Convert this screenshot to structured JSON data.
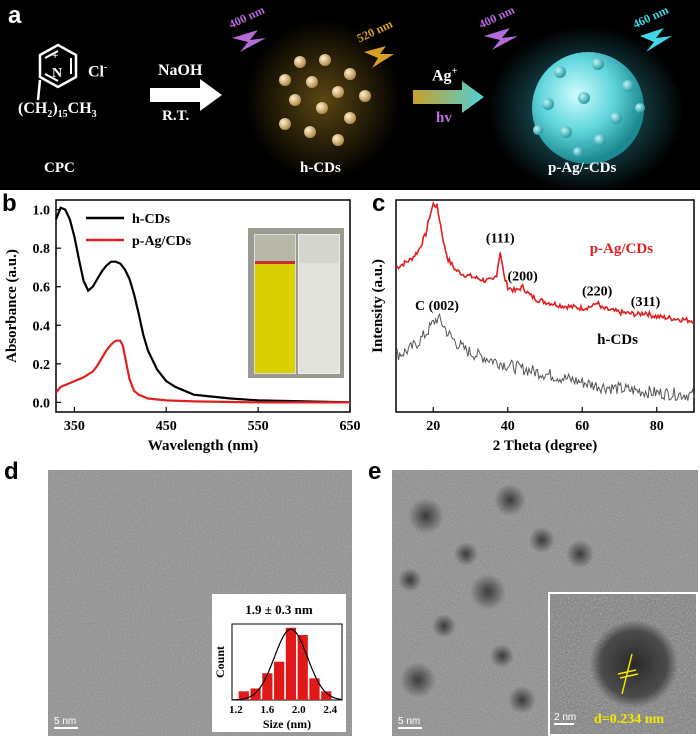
{
  "panel_a": {
    "letter": "a",
    "anion": "Cl",
    "anion_charge": "-",
    "cation_charge": "+",
    "nitrogen": "N",
    "chain": "(CH",
    "chain_sub1": "2",
    "chain_mid": ")",
    "chain_sub2": "15",
    "chain_end": "CH",
    "chain_sub3": "3",
    "reagent1": "NaOH",
    "condition1": "R.T.",
    "reagent2": "Ag",
    "reagent2_charge": "+",
    "condition2": "hv",
    "label_cpc": "CPC",
    "label_hcds": "h-CDs",
    "label_pag": "p-Ag/-CDs",
    "exc1": "400 nm",
    "em1": "520 nm",
    "exc2": "400 nm",
    "em2": "460 nm"
  },
  "panel_b": {
    "letter": "b"
  },
  "panel_c": {
    "letter": "c"
  },
  "panel_d": {
    "letter": "d",
    "scale": "5 nm",
    "inset_title": "1.9 ± 0.3 nm"
  },
  "panel_e": {
    "letter": "e",
    "scale": "5 nm",
    "inset_scale": "2 nm",
    "d_spacing": "d=0.234 nm"
  },
  "chart_data": [
    {
      "type": "line",
      "panel": "b",
      "xlabel": "Wavelength (nm)",
      "ylabel": "Absorbance (a.u.)",
      "xlim": [
        330,
        650
      ],
      "ylim": [
        -0.05,
        1.05
      ],
      "xticks": [
        350,
        450,
        550,
        650
      ],
      "yticks": [
        0.0,
        0.2,
        0.4,
        0.6,
        0.8,
        1.0
      ],
      "ytick_labels": [
        "0.0",
        "0.2",
        "0.4",
        "0.6",
        "0.8",
        "1.0"
      ],
      "legend": "top-left",
      "series": [
        {
          "name": "h-CDs",
          "color": "#000000",
          "x": [
            330,
            335,
            340,
            345,
            350,
            355,
            360,
            365,
            370,
            375,
            380,
            385,
            390,
            395,
            400,
            405,
            410,
            415,
            420,
            425,
            430,
            440,
            450,
            460,
            470,
            480,
            500,
            520,
            550,
            600,
            650
          ],
          "y": [
            0.95,
            1.01,
            1.0,
            0.95,
            0.86,
            0.74,
            0.63,
            0.58,
            0.6,
            0.64,
            0.68,
            0.71,
            0.73,
            0.73,
            0.72,
            0.69,
            0.64,
            0.56,
            0.46,
            0.35,
            0.27,
            0.17,
            0.11,
            0.08,
            0.06,
            0.04,
            0.03,
            0.02,
            0.01,
            0.005,
            0.0
          ]
        },
        {
          "name": "p-Ag/CDs",
          "color": "#e02020",
          "x": [
            330,
            335,
            340,
            350,
            360,
            370,
            375,
            380,
            385,
            390,
            395,
            400,
            403,
            405,
            410,
            415,
            420,
            430,
            450,
            480,
            550,
            650
          ],
          "y": [
            0.05,
            0.08,
            0.09,
            0.11,
            0.13,
            0.16,
            0.19,
            0.23,
            0.27,
            0.3,
            0.32,
            0.32,
            0.29,
            0.24,
            0.12,
            0.06,
            0.04,
            0.02,
            0.01,
            0.005,
            0.0,
            0.0
          ]
        }
      ]
    },
    {
      "type": "line",
      "panel": "c",
      "xlabel": "2 Theta (degree)",
      "ylabel": "Intensity (a.u.)",
      "xlim": [
        10,
        90
      ],
      "xticks": [
        20,
        40,
        60,
        80
      ],
      "grid": false,
      "series": [
        {
          "name": "p-Ag/CDs",
          "color": "#e02020",
          "x": [
            10,
            12,
            14,
            16,
            18,
            19,
            20,
            21,
            22,
            23,
            24,
            26,
            28,
            30,
            32,
            34,
            36,
            37,
            38,
            39,
            40,
            42,
            43,
            44,
            45,
            46,
            48,
            50,
            55,
            60,
            63,
            64,
            65,
            70,
            75,
            77,
            78,
            80,
            85,
            90
          ],
          "y": [
            0.68,
            0.7,
            0.72,
            0.76,
            0.84,
            0.92,
            0.98,
            0.97,
            0.88,
            0.78,
            0.72,
            0.67,
            0.65,
            0.64,
            0.63,
            0.62,
            0.62,
            0.65,
            0.76,
            0.64,
            0.59,
            0.57,
            0.58,
            0.59,
            0.57,
            0.55,
            0.53,
            0.52,
            0.5,
            0.49,
            0.5,
            0.52,
            0.49,
            0.47,
            0.46,
            0.47,
            0.46,
            0.45,
            0.44,
            0.43
          ]
        },
        {
          "name": "h-CDs",
          "color": "#555555",
          "x": [
            10,
            12,
            14,
            16,
            18,
            20,
            21,
            22,
            23,
            24,
            26,
            28,
            30,
            35,
            40,
            45,
            50,
            55,
            60,
            65,
            70,
            75,
            80,
            85,
            90
          ],
          "y": [
            0.27,
            0.28,
            0.3,
            0.33,
            0.37,
            0.42,
            0.44,
            0.43,
            0.4,
            0.37,
            0.33,
            0.3,
            0.28,
            0.25,
            0.22,
            0.2,
            0.18,
            0.16,
            0.14,
            0.12,
            0.11,
            0.1,
            0.09,
            0.085,
            0.08
          ]
        }
      ],
      "annotations": [
        {
          "text": "(111)",
          "x": 38,
          "y": 0.8
        },
        {
          "text": "(200)",
          "x": 44,
          "y": 0.62
        },
        {
          "text": "(220)",
          "x": 64,
          "y": 0.55
        },
        {
          "text": "(311)",
          "x": 77,
          "y": 0.5
        },
        {
          "text": "C (002)",
          "x": 21,
          "y": 0.48
        }
      ]
    },
    {
      "type": "bar",
      "panel": "d-inset",
      "xlabel": "Size (nm)",
      "ylabel": "Count",
      "xlim": [
        1.15,
        2.55
      ],
      "xticks": [
        1.2,
        1.6,
        2.0,
        2.4
      ],
      "xtick_labels": [
        "1.2",
        "1.6",
        "2.0",
        "2.4"
      ],
      "bar_color": "#e01818",
      "bin_width": 0.13,
      "x": [
        1.3,
        1.45,
        1.6,
        1.75,
        1.9,
        2.05,
        2.2,
        2.35
      ],
      "values": [
        0.12,
        0.16,
        0.37,
        0.53,
        1.0,
        0.9,
        0.3,
        0.12
      ],
      "fit": {
        "mean": 1.9,
        "sd": 0.3,
        "peak": 0.98
      }
    }
  ]
}
